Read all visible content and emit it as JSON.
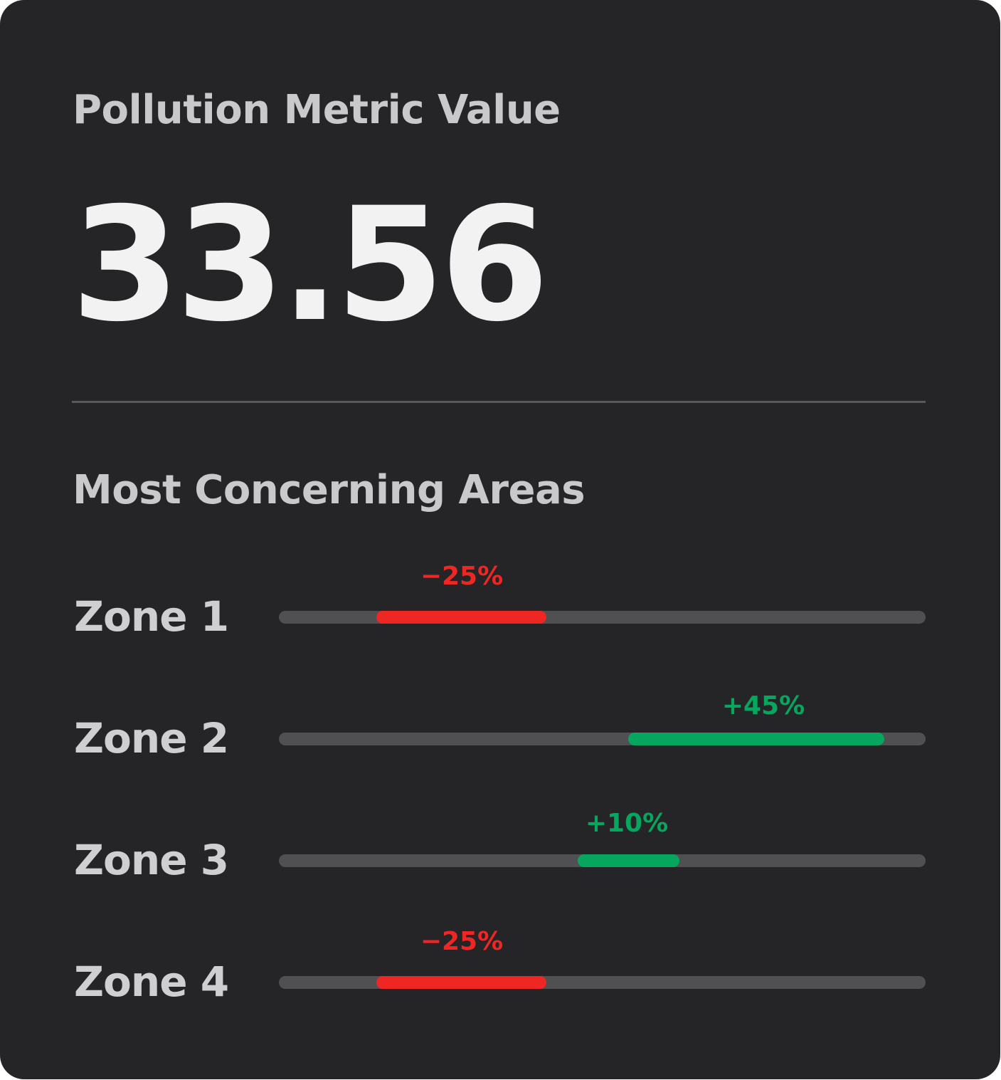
{
  "card": {
    "metric_label": "Pollution Metric Value",
    "metric_value": "33.56",
    "section_title": "Most Concerning Areas"
  },
  "colors": {
    "background": "#252527",
    "negative": "#ee2724",
    "positive": "#07a65e",
    "track": "#505052"
  },
  "zones": [
    {
      "name": "Zone 1",
      "change": "−25%",
      "trend": "negative"
    },
    {
      "name": "Zone 2",
      "change": "+45%",
      "trend": "positive"
    },
    {
      "name": "Zone 3",
      "change": "+10%",
      "trend": "positive"
    },
    {
      "name": "Zone 4",
      "change": "−25%",
      "trend": "negative"
    }
  ]
}
